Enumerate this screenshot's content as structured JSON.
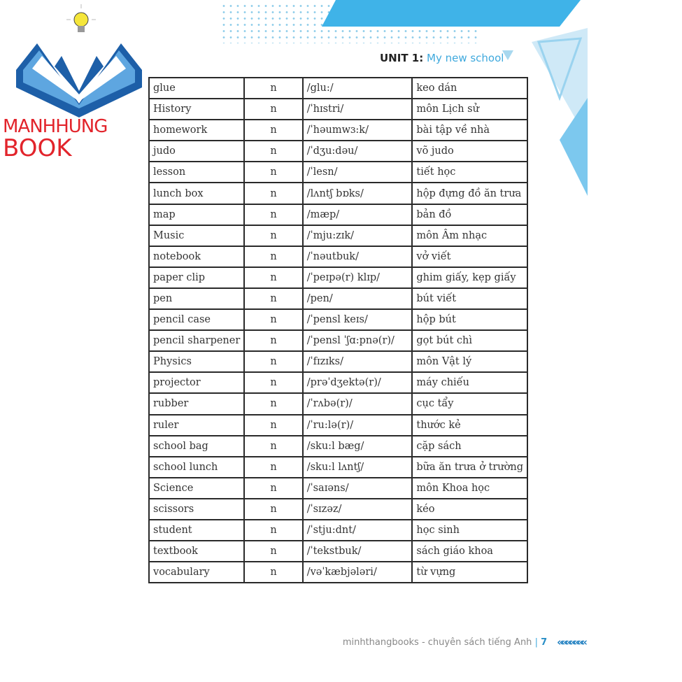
{
  "header": {
    "unit_label": "UNIT 1:",
    "unit_title": "My new school"
  },
  "watermark": {
    "brand_part1": "MANHHUNG",
    "brand_part2": "BOOK"
  },
  "colors": {
    "accent": "#3fa9dd",
    "brand_red": "#e2242b",
    "logo_blue": "#1d5fa8"
  },
  "vocabulary": [
    [
      "glue",
      "n",
      "/glu:/",
      "keo dán"
    ],
    [
      "History",
      "n",
      "/ˈhɪstri/",
      "môn Lịch sử"
    ],
    [
      "homework",
      "n",
      "/ˈhəumwɜ:k/",
      "bài tập về nhà"
    ],
    [
      "judo",
      "n",
      "/ˈdʒu:dəu/",
      "võ judo"
    ],
    [
      "lesson",
      "n",
      "/ˈlesn/",
      "tiết học"
    ],
    [
      "lunch box",
      "n",
      "/lʌntʃ bɒks/",
      "hộp đựng đồ ăn trưa"
    ],
    [
      "map",
      "n",
      "/mæp/",
      "bản đồ"
    ],
    [
      "Music",
      "n",
      "/ˈmju:zɪk/",
      "môn Âm nhạc"
    ],
    [
      "notebook",
      "n",
      "/ˈnəutbuk/",
      "vở viết"
    ],
    [
      "paper clip",
      "n",
      "/ˈpeɪpə(r) klɪp/",
      "ghim giấy, kẹp giấy"
    ],
    [
      "pen",
      "n",
      "/pen/",
      "bút viết"
    ],
    [
      "pencil case",
      "n",
      "/ˈpensl keɪs/",
      "hộp bút"
    ],
    [
      "pencil sharpener",
      "n",
      "/ˈpensl ˈʃɑ:pnə(r)/",
      "gọt bút chì"
    ],
    [
      "Physics",
      "n",
      "/ˈfɪzɪks/",
      "môn Vật lý"
    ],
    [
      "projector",
      "n",
      "/prəˈdʒektə(r)/",
      "máy chiếu"
    ],
    [
      "rubber",
      "n",
      "/ˈrʌbə(r)/",
      "cục tẩy"
    ],
    [
      "ruler",
      "n",
      "/ˈru:lə(r)/",
      "thước kẻ"
    ],
    [
      "school bag",
      "n",
      "/sku:l bæg/",
      "cặp sách"
    ],
    [
      "school lunch",
      "n",
      "/sku:l lʌntʃ/",
      "bữa ăn trưa ở trường"
    ],
    [
      "Science",
      "n",
      "/ˈsaɪəns/",
      "môn Khoa học"
    ],
    [
      "scissors",
      "n",
      "/ˈsɪzəz/",
      "kéo"
    ],
    [
      "student",
      "n",
      "/ˈstju:dnt/",
      "học sinh"
    ],
    [
      "textbook",
      "n",
      "/ˈtekstbuk/",
      "sách giáo khoa"
    ],
    [
      "vocabulary",
      "n",
      "/vəˈkæbjələri/",
      "từ vựng"
    ]
  ],
  "footer": {
    "text": "minhthangbooks - chuyên sách tiếng Anh",
    "separator": "|",
    "page_number": "7",
    "chevrons": "«««««««"
  }
}
